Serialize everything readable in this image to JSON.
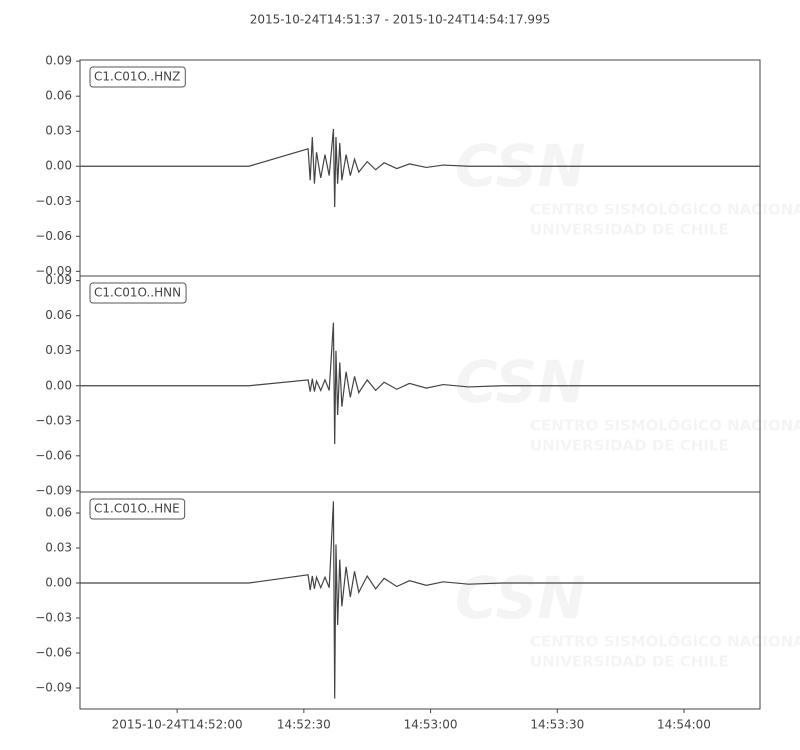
{
  "watermark": {
    "logo": "CSN",
    "line1": "CENTRO SISMOLÓGICO NACIONAL",
    "line2": "UNIVERSIDAD DE CHILE"
  },
  "chart_data": [
    {
      "type": "line",
      "title": "2015-10-24T14:51:37  -  2015-10-24T14:54:17.995",
      "x": [
        0,
        20,
        40,
        54,
        54.5,
        55,
        55.5,
        56,
        57,
        58,
        59,
        60,
        60.3,
        60.6,
        61,
        61.5,
        62,
        63,
        64,
        65,
        66,
        68,
        70,
        72,
        75,
        78,
        82,
        86,
        92,
        100,
        120,
        140,
        160.995
      ],
      "xlim": [
        0,
        160.995
      ],
      "ylim": [
        -0.094,
        0.091
      ],
      "yticks": [
        {
          "value": 0.09,
          "label": "0.09"
        },
        {
          "value": 0.06,
          "label": "0.06"
        },
        {
          "value": 0.03,
          "label": "0.03"
        },
        {
          "value": 0,
          "label": "0.00"
        },
        {
          "value": -0.03,
          "label": "−0.03"
        },
        {
          "value": -0.06,
          "label": "−0.06"
        },
        {
          "value": -0.09,
          "label": "−0.09"
        }
      ],
      "series": [
        {
          "name": "C1.C01O..HNZ",
          "color": "#444444",
          "values": [
            0,
            0,
            0,
            0.015,
            -0.012,
            0.025,
            -0.015,
            0.012,
            -0.01,
            0.01,
            -0.008,
            0.032,
            -0.035,
            0.025,
            -0.015,
            0.02,
            -0.012,
            0.01,
            -0.008,
            0.006,
            -0.005,
            0.004,
            -0.003,
            0.003,
            -0.002,
            0.002,
            -0.001,
            0.001,
            0,
            0,
            0,
            0,
            0
          ]
        }
      ]
    },
    {
      "type": "line",
      "x": [
        0,
        20,
        40,
        54,
        54.5,
        55,
        55.5,
        56,
        57,
        58,
        59,
        60,
        60.3,
        60.6,
        61,
        61.5,
        62,
        63,
        64,
        65,
        66,
        68,
        70,
        72,
        75,
        78,
        82,
        86,
        92,
        100,
        120,
        140,
        160.995
      ],
      "xlim": [
        0,
        160.995
      ],
      "ylim": [
        -0.091,
        0.094
      ],
      "yticks": [
        {
          "value": 0.09,
          "label": "0.09"
        },
        {
          "value": 0.06,
          "label": "0.06"
        },
        {
          "value": 0.03,
          "label": "0.03"
        },
        {
          "value": 0,
          "label": "0.00"
        },
        {
          "value": -0.03,
          "label": "−0.03"
        },
        {
          "value": -0.06,
          "label": "−0.06"
        },
        {
          "value": -0.09,
          "label": "−0.09"
        }
      ],
      "series": [
        {
          "name": "C1.C01O..HNN",
          "color": "#444444",
          "values": [
            0,
            0,
            0,
            0.005,
            -0.005,
            0.006,
            -0.005,
            0.004,
            -0.004,
            0.005,
            -0.004,
            0.054,
            -0.05,
            0.03,
            -0.025,
            0.02,
            -0.018,
            0.012,
            -0.01,
            0.008,
            -0.006,
            0.005,
            -0.004,
            0.003,
            -0.003,
            0.002,
            -0.002,
            0.001,
            -0.001,
            0,
            0,
            0,
            0
          ]
        }
      ]
    },
    {
      "type": "line",
      "x": [
        0,
        20,
        40,
        54,
        54.5,
        55,
        55.5,
        56,
        57,
        58,
        59,
        60,
        60.3,
        60.6,
        61,
        61.5,
        62,
        63,
        64,
        65,
        66,
        68,
        70,
        72,
        75,
        78,
        82,
        86,
        92,
        100,
        120,
        140,
        160.995
      ],
      "xlim": [
        0,
        160.995
      ],
      "xticks": [
        {
          "value": 23,
          "label": "2015-10-24T14:52:00"
        },
        {
          "value": 53,
          "label": "14:52:30"
        },
        {
          "value": 83,
          "label": "14:53:00"
        },
        {
          "value": 113,
          "label": "14:53:30"
        },
        {
          "value": 143,
          "label": "14:54:00"
        }
      ],
      "ylim": [
        -0.108,
        0.078
      ],
      "yticks": [
        {
          "value": 0.06,
          "label": "0.06"
        },
        {
          "value": 0.03,
          "label": "0.03"
        },
        {
          "value": 0,
          "label": "0.00"
        },
        {
          "value": -0.03,
          "label": "−0.03"
        },
        {
          "value": -0.06,
          "label": "−0.06"
        },
        {
          "value": -0.09,
          "label": "−0.09"
        }
      ],
      "series": [
        {
          "name": "C1.C01O..HNE",
          "color": "#444444",
          "values": [
            0,
            0,
            0,
            0.007,
            -0.006,
            0.006,
            -0.005,
            0.005,
            -0.004,
            0.005,
            -0.004,
            0.07,
            -0.099,
            0.033,
            -0.036,
            0.02,
            -0.02,
            0.014,
            -0.012,
            0.01,
            -0.008,
            0.006,
            -0.005,
            0.004,
            -0.003,
            0.002,
            -0.002,
            0.001,
            -0.001,
            0,
            0,
            0,
            0
          ]
        }
      ]
    }
  ]
}
